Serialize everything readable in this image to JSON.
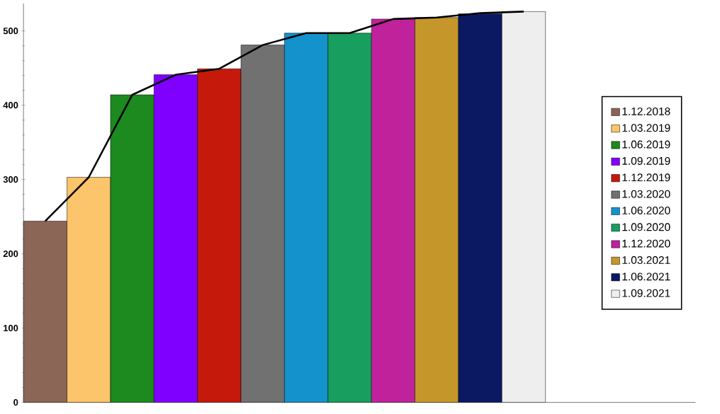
{
  "chart_data": {
    "type": "bar",
    "categories": [
      null,
      null,
      null,
      null,
      null,
      null,
      null,
      null,
      null,
      null,
      null,
      null
    ],
    "series": [
      {
        "name": "1.12.2018",
        "color": "#8b6657",
        "values": [
          244,
          null,
          null,
          null,
          null,
          null,
          null,
          null,
          null,
          null,
          null,
          null
        ]
      },
      {
        "name": "1.03.2019",
        "color": "#fcc46b",
        "values": [
          null,
          303,
          null,
          null,
          null,
          null,
          null,
          null,
          null,
          null,
          null,
          null
        ]
      },
      {
        "name": "1.06.2019",
        "color": "#1c8a1e",
        "values": [
          null,
          null,
          414,
          null,
          null,
          null,
          null,
          null,
          null,
          null,
          null,
          null
        ]
      },
      {
        "name": "1.09.2019",
        "color": "#8000ff",
        "values": [
          null,
          null,
          null,
          441,
          null,
          null,
          null,
          null,
          null,
          null,
          null,
          null
        ]
      },
      {
        "name": "1.12.2019",
        "color": "#c4190b",
        "values": [
          null,
          null,
          null,
          null,
          449,
          null,
          null,
          null,
          null,
          null,
          null,
          null
        ]
      },
      {
        "name": "1.03.2020",
        "color": "#717171",
        "values": [
          null,
          null,
          null,
          null,
          null,
          481,
          null,
          null,
          null,
          null,
          null,
          null
        ]
      },
      {
        "name": "1.06.2020",
        "color": "#1492cb",
        "values": [
          null,
          null,
          null,
          null,
          null,
          null,
          497,
          null,
          null,
          null,
          null,
          null
        ]
      },
      {
        "name": "1.09.2020",
        "color": "#189e5e",
        "values": [
          null,
          null,
          null,
          null,
          null,
          null,
          null,
          497,
          null,
          null,
          null,
          null
        ]
      },
      {
        "name": "1.12.2020",
        "color": "#c0229c",
        "values": [
          null,
          null,
          null,
          null,
          null,
          null,
          null,
          null,
          516,
          null,
          null,
          null
        ]
      },
      {
        "name": "1.03.2021",
        "color": "#c5962a",
        "values": [
          null,
          null,
          null,
          null,
          null,
          null,
          null,
          null,
          null,
          518,
          null,
          null
        ]
      },
      {
        "name": "1.06.2021",
        "color": "#0b1862",
        "values": [
          null,
          null,
          null,
          null,
          null,
          null,
          null,
          null,
          null,
          null,
          523,
          null
        ]
      },
      {
        "name": "1.09.2021",
        "color": "#eeeeee",
        "values": [
          null,
          null,
          null,
          null,
          null,
          null,
          null,
          null,
          null,
          null,
          null,
          526
        ]
      },
      {
        "type": "line",
        "color": "#000000",
        "values": [
          244,
          303,
          414,
          441,
          449,
          481,
          497,
          497,
          516,
          518,
          524,
          526
        ]
      }
    ],
    "marker": "none",
    "ylim": [
      0,
      537
    ],
    "yticks": [
      0,
      100,
      200,
      300,
      400,
      500
    ],
    "legend": "right"
  }
}
